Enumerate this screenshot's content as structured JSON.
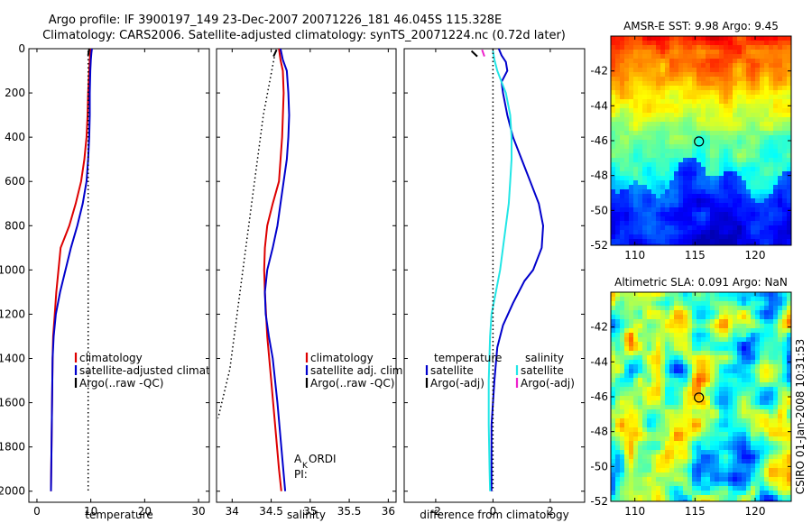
{
  "title_line1": "Argo profile: IF 3900197_149 23-Dec-2007 20071226_181 46.045S 115.328E",
  "title_line2": "Climatology: CARS2006. Satellite-adjusted climatology: synTS_20071224.nc (0.72d later)",
  "side_label": "CSIRO 01-Jan-2008 10:31:53",
  "colors": {
    "red": "#dd0000",
    "blue": "#0000cc",
    "cyan": "#22e6e6",
    "magenta": "#ee22cc",
    "black": "#000000"
  },
  "chart_data": [
    {
      "id": "temperature",
      "type": "line",
      "xlabel": "temperature",
      "ylabel": "",
      "xlim": [
        -1.5,
        32
      ],
      "ylim": [
        2050,
        0
      ],
      "xticks": [
        0,
        10,
        20,
        30
      ],
      "yticks": [
        0,
        200,
        400,
        600,
        800,
        1000,
        1200,
        1400,
        1600,
        1800,
        2000
      ],
      "legend": {
        "placement": "lower-right",
        "entries": [
          "climatology",
          "satellite-adjusted climatology",
          "Argo(..raw -QC)"
        ],
        "colors": [
          "red",
          "blue",
          "black"
        ]
      },
      "series": [
        {
          "name": "climatology",
          "color": "red",
          "style": "solid",
          "points": [
            [
              10.0,
              0
            ],
            [
              9.9,
              20
            ],
            [
              9.8,
              50
            ],
            [
              9.7,
              100
            ],
            [
              9.6,
              150
            ],
            [
              9.5,
              200
            ],
            [
              9.4,
              300
            ],
            [
              9.2,
              400
            ],
            [
              8.8,
              500
            ],
            [
              8.2,
              600
            ],
            [
              7.2,
              700
            ],
            [
              6.0,
              800
            ],
            [
              5.2,
              850
            ],
            [
              4.4,
              900
            ],
            [
              4.0,
              1000
            ],
            [
              3.6,
              1100
            ],
            [
              3.3,
              1200
            ],
            [
              3.0,
              1300
            ],
            [
              2.9,
              1400
            ],
            [
              2.8,
              1600
            ],
            [
              2.7,
              1800
            ],
            [
              2.6,
              2000
            ]
          ]
        },
        {
          "name": "satellite-adjusted climatology",
          "color": "blue",
          "style": "solid",
          "points": [
            [
              10.2,
              0
            ],
            [
              10.1,
              20
            ],
            [
              10.0,
              50
            ],
            [
              9.9,
              100
            ],
            [
              9.8,
              200
            ],
            [
              9.8,
              300
            ],
            [
              9.7,
              400
            ],
            [
              9.5,
              500
            ],
            [
              9.2,
              600
            ],
            [
              8.5,
              700
            ],
            [
              7.5,
              800
            ],
            [
              6.3,
              900
            ],
            [
              5.3,
              1000
            ],
            [
              4.3,
              1100
            ],
            [
              3.5,
              1200
            ],
            [
              3.1,
              1300
            ],
            [
              2.9,
              1400
            ],
            [
              2.8,
              1600
            ],
            [
              2.7,
              1800
            ],
            [
              2.6,
              2000
            ]
          ]
        },
        {
          "name": "Argo(..raw -QC)",
          "color": "black",
          "style": "dotted",
          "points": [
            [
              9.5,
              10
            ],
            [
              9.5,
              200
            ],
            [
              9.5,
              600
            ],
            [
              9.5,
              1000
            ],
            [
              9.5,
              1400
            ],
            [
              9.5,
              1800
            ],
            [
              9.5,
              2000
            ]
          ]
        },
        {
          "name": "",
          "color": "black",
          "style": "solid",
          "points": [
            [
              9.7,
              0
            ],
            [
              9.5,
              30
            ]
          ]
        }
      ]
    },
    {
      "id": "salinity",
      "type": "line",
      "xlabel": "salinity",
      "ylabel": "",
      "xlim": [
        33.8,
        36.1
      ],
      "ylim": [
        2050,
        0
      ],
      "xticks": [
        34,
        34.5,
        35,
        35.5,
        36
      ],
      "legend": {
        "placement": "lower-right",
        "entries": [
          "climatology",
          "satellite adj. clim.",
          "Argo(..raw -QC)"
        ],
        "colors": [
          "red",
          "blue",
          "black"
        ]
      },
      "annotations": [
        "A",
        "K",
        "ORDI",
        "PI:"
      ],
      "series": [
        {
          "name": "climatology",
          "color": "red",
          "style": "solid",
          "points": [
            [
              34.6,
              0
            ],
            [
              34.62,
              50
            ],
            [
              34.65,
              100
            ],
            [
              34.66,
              200
            ],
            [
              34.64,
              400
            ],
            [
              34.6,
              600
            ],
            [
              34.52,
              700
            ],
            [
              34.45,
              800
            ],
            [
              34.42,
              900
            ],
            [
              34.41,
              1000
            ],
            [
              34.42,
              1100
            ],
            [
              34.45,
              1300
            ],
            [
              34.5,
              1500
            ],
            [
              34.55,
              1700
            ],
            [
              34.6,
              1900
            ],
            [
              34.63,
              2000
            ]
          ]
        },
        {
          "name": "satellite adj. clim.",
          "color": "blue",
          "style": "solid",
          "points": [
            [
              34.62,
              0
            ],
            [
              34.65,
              50
            ],
            [
              34.7,
              100
            ],
            [
              34.72,
              200
            ],
            [
              34.73,
              300
            ],
            [
              34.72,
              400
            ],
            [
              34.7,
              500
            ],
            [
              34.66,
              600
            ],
            [
              34.62,
              700
            ],
            [
              34.58,
              800
            ],
            [
              34.52,
              900
            ],
            [
              34.45,
              1000
            ],
            [
              34.42,
              1100
            ],
            [
              34.43,
              1200
            ],
            [
              34.47,
              1300
            ],
            [
              34.52,
              1400
            ],
            [
              34.58,
              1600
            ],
            [
              34.63,
              1800
            ],
            [
              34.68,
              2000
            ]
          ]
        },
        {
          "name": "Argo(..raw -QC)",
          "color": "black",
          "style": "dotted",
          "points": [
            [
              34.55,
              20
            ],
            [
              34.4,
              300
            ],
            [
              34.25,
              700
            ],
            [
              34.1,
              1100
            ],
            [
              33.97,
              1450
            ],
            [
              33.82,
              1670
            ]
          ]
        },
        {
          "name": "",
          "color": "black",
          "style": "solid",
          "points": [
            [
              34.57,
              5
            ],
            [
              34.53,
              35
            ]
          ]
        }
      ]
    },
    {
      "id": "difference",
      "type": "line",
      "xlabel": "difference from climatology",
      "ylabel": "",
      "xlim": [
        -3.1,
        3.2
      ],
      "ylim": [
        2050,
        0
      ],
      "xticks": [
        -2,
        0,
        2
      ],
      "legend": {
        "placement": "lower-right",
        "columns": [
          {
            "header": "temperature",
            "entries": [
              "satellite",
              "Argo(-adj)"
            ],
            "colors": [
              "blue",
              "black"
            ]
          },
          {
            "header": "salinity",
            "entries": [
              "satellite",
              "Argo(-adj)"
            ],
            "colors": [
              "cyan",
              "magenta"
            ]
          }
        ]
      },
      "series": [
        {
          "name": "temperature satellite",
          "color": "blue",
          "style": "solid",
          "points": [
            [
              0.2,
              0
            ],
            [
              0.3,
              30
            ],
            [
              0.45,
              60
            ],
            [
              0.5,
              100
            ],
            [
              0.3,
              150
            ],
            [
              0.35,
              200
            ],
            [
              0.5,
              300
            ],
            [
              0.7,
              400
            ],
            [
              1.0,
              500
            ],
            [
              1.3,
              600
            ],
            [
              1.6,
              700
            ],
            [
              1.75,
              800
            ],
            [
              1.7,
              900
            ],
            [
              1.4,
              1000
            ],
            [
              1.1,
              1050
            ],
            [
              0.7,
              1150
            ],
            [
              0.35,
              1250
            ],
            [
              0.15,
              1350
            ],
            [
              0.05,
              1500
            ],
            [
              -0.05,
              1700
            ],
            [
              -0.05,
              1900
            ],
            [
              -0.05,
              2000
            ]
          ]
        },
        {
          "name": "salinity satellite",
          "color": "cyan",
          "style": "solid",
          "points": [
            [
              0.0,
              10
            ],
            [
              0.05,
              50
            ],
            [
              0.15,
              100
            ],
            [
              0.3,
              150
            ],
            [
              0.45,
              200
            ],
            [
              0.6,
              300
            ],
            [
              0.65,
              400
            ],
            [
              0.65,
              500
            ],
            [
              0.6,
              600
            ],
            [
              0.55,
              700
            ],
            [
              0.45,
              800
            ],
            [
              0.35,
              900
            ],
            [
              0.25,
              1000
            ],
            [
              0.1,
              1100
            ],
            [
              -0.05,
              1200
            ],
            [
              -0.1,
              1300
            ],
            [
              -0.15,
              1500
            ],
            [
              -0.15,
              1700
            ],
            [
              -0.12,
              1900
            ],
            [
              -0.1,
              2000
            ]
          ]
        },
        {
          "name": "zero reference",
          "color": "black",
          "style": "dotted",
          "points": [
            [
              0,
              0
            ],
            [
              0,
              2000
            ]
          ]
        },
        {
          "name": "temperature Argo(-adj)",
          "color": "black",
          "style": "solid",
          "points": [
            [
              -0.75,
              10
            ],
            [
              -0.55,
              35
            ]
          ]
        },
        {
          "name": "salinity Argo(-adj)",
          "color": "magenta",
          "style": "solid",
          "points": [
            [
              -0.38,
              5
            ],
            [
              -0.3,
              35
            ]
          ]
        }
      ]
    },
    {
      "id": "sst-map",
      "type": "heatmap",
      "title": "AMSR-E SST: 9.98 Argo: 9.45",
      "xlim": [
        108,
        123
      ],
      "ylim": [
        -52,
        -40
      ],
      "xticks": [
        110,
        115,
        120
      ],
      "yticks": [
        -42,
        -44,
        -46,
        -48,
        -50,
        -52
      ],
      "colormap": "jet",
      "profile_marker": [
        115.328,
        -46.045
      ]
    },
    {
      "id": "sla-map",
      "type": "heatmap",
      "title": "Altimetric SLA: 0.091 Argo: NaN",
      "xlim": [
        108,
        123
      ],
      "ylim": [
        -52,
        -40
      ],
      "xticks": [
        110,
        115,
        120
      ],
      "yticks": [
        -42,
        -44,
        -46,
        -48,
        -50,
        -52
      ],
      "colormap": "jet",
      "profile_marker": [
        115.328,
        -46.045
      ]
    }
  ]
}
